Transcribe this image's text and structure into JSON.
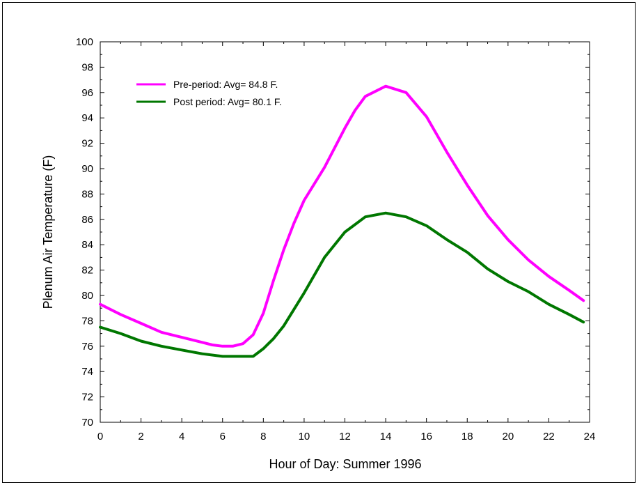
{
  "chart_data": {
    "type": "line",
    "title": "",
    "xlabel": "Hour of Day: Summer 1996",
    "ylabel": "Plenum Air Temperature (F)",
    "xlim": [
      0,
      24
    ],
    "ylim": [
      70,
      100
    ],
    "x_ticks": [
      0,
      2,
      4,
      6,
      8,
      10,
      12,
      14,
      16,
      18,
      20,
      22,
      24
    ],
    "y_ticks": [
      70,
      72,
      74,
      76,
      78,
      80,
      82,
      84,
      86,
      88,
      90,
      92,
      94,
      96,
      98,
      100
    ],
    "grid": false,
    "legend_position": "top-left",
    "series": [
      {
        "name": "Pre-period: Avg= 84.8 F.",
        "color": "#ff00ff",
        "x": [
          0,
          1,
          2,
          3,
          4,
          5,
          5.5,
          6,
          6.5,
          7,
          7.5,
          8,
          8.5,
          9,
          9.5,
          10,
          11,
          12,
          12.5,
          13,
          14,
          15,
          16,
          17,
          18,
          19,
          20,
          21,
          22,
          23,
          23.7
        ],
        "y": [
          79.3,
          78.5,
          77.8,
          77.1,
          76.7,
          76.3,
          76.1,
          76.0,
          76.0,
          76.2,
          76.9,
          78.6,
          81.2,
          83.6,
          85.7,
          87.5,
          90.1,
          93.2,
          94.6,
          95.7,
          96.5,
          96.0,
          94.1,
          91.3,
          88.7,
          86.3,
          84.4,
          82.8,
          81.5,
          80.4,
          79.6
        ]
      },
      {
        "name": "Post period: Avg= 80.1 F.",
        "color": "#007700",
        "x": [
          0,
          1,
          2,
          3,
          4,
          5,
          6,
          7,
          7.5,
          8,
          8.5,
          9,
          10,
          11,
          12,
          13,
          14,
          15,
          16,
          17,
          18,
          19,
          20,
          21,
          22,
          23,
          23.7
        ],
        "y": [
          77.5,
          77.0,
          76.4,
          76.0,
          75.7,
          75.4,
          75.2,
          75.2,
          75.2,
          75.8,
          76.6,
          77.6,
          80.2,
          83.0,
          85.0,
          86.2,
          86.5,
          86.2,
          85.5,
          84.4,
          83.4,
          82.1,
          81.1,
          80.3,
          79.3,
          78.5,
          77.9
        ]
      }
    ]
  }
}
